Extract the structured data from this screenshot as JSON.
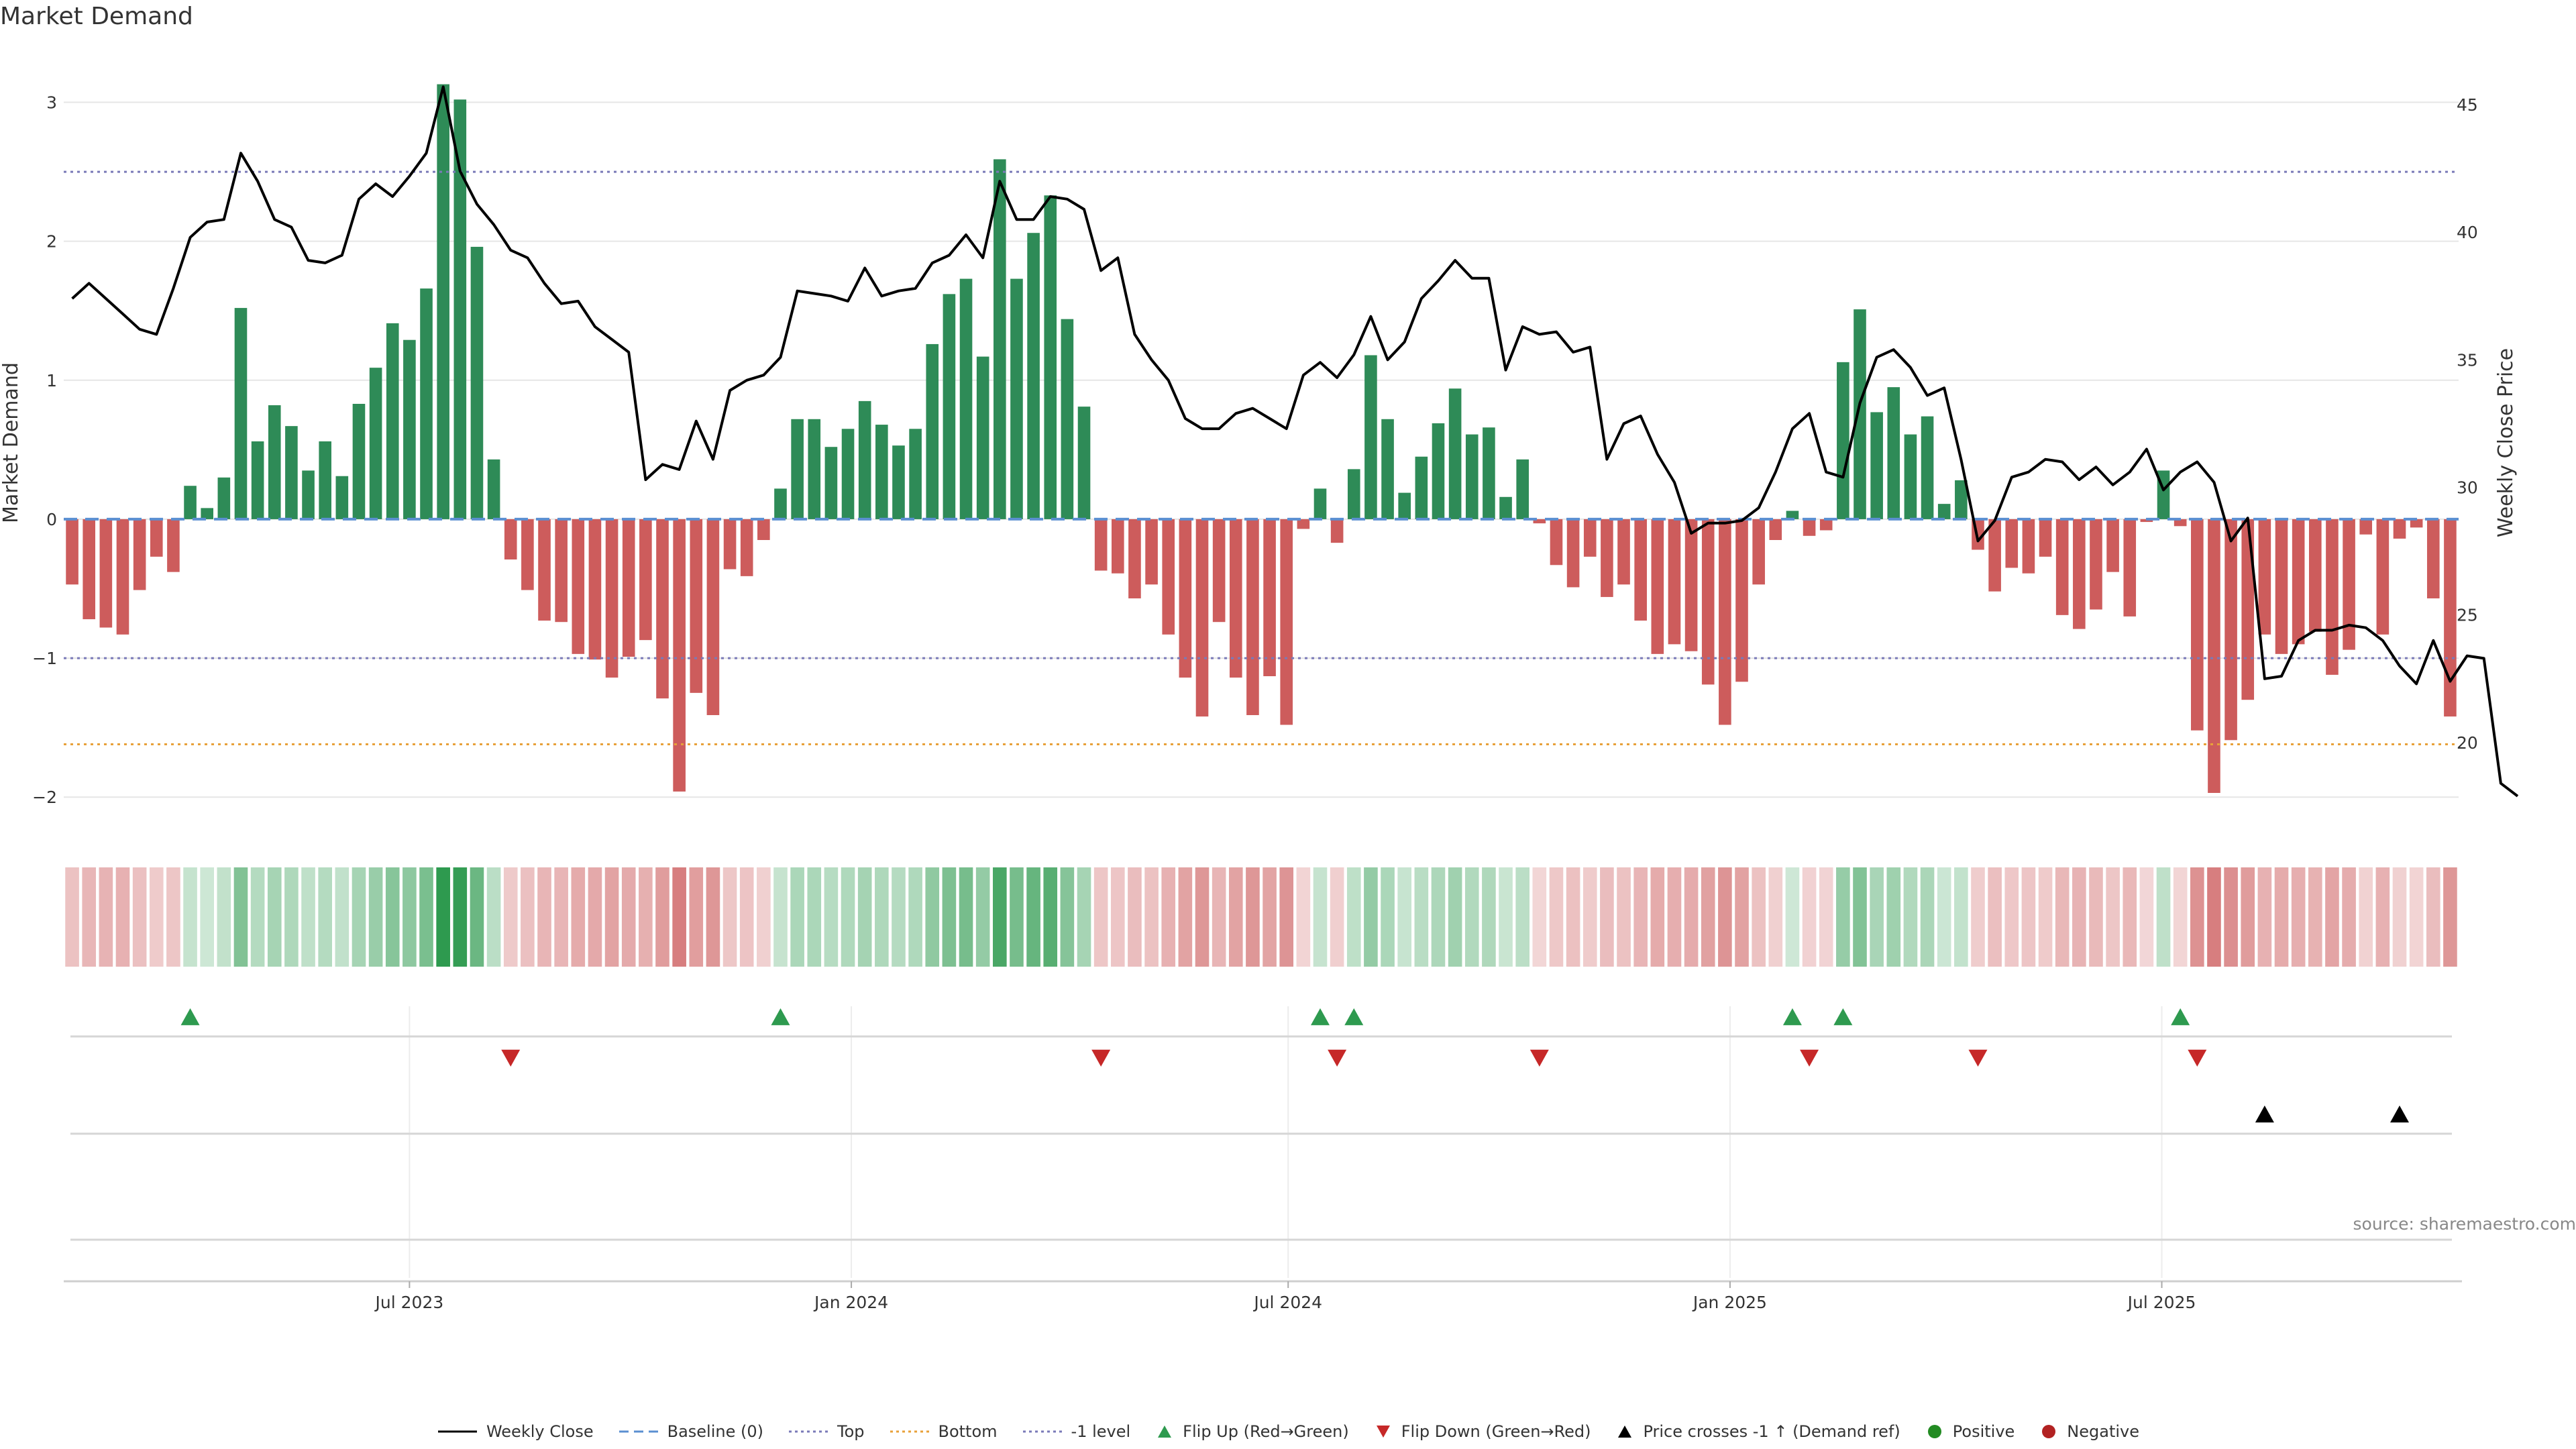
{
  "chart_data": {
    "type": "bar",
    "title": "Market Demand",
    "source": "source: sharemaestro.com",
    "ylabel_left": "Market Demand",
    "ylabel_right": "Weekly Close Price",
    "ylim_left": [
      -2.25,
      3.35
    ],
    "ylim_right": [
      16.5,
      47
    ],
    "yticks_left": [
      {
        "v": 3,
        "l": "3"
      },
      {
        "v": 2,
        "l": "2"
      },
      {
        "v": 1,
        "l": "1"
      },
      {
        "v": 0,
        "l": "0"
      },
      {
        "v": -1,
        "l": "−1"
      },
      {
        "v": -2,
        "l": "−2"
      }
    ],
    "yticks_right": [
      {
        "v": 45,
        "l": "45"
      },
      {
        "v": 40,
        "l": "40"
      },
      {
        "v": 35,
        "l": "35"
      },
      {
        "v": 30,
        "l": "30"
      },
      {
        "v": 25,
        "l": "25"
      },
      {
        "v": 20,
        "l": "20"
      }
    ],
    "x_ticks": [
      {
        "index": 20.5,
        "label": "Jul 2023"
      },
      {
        "index": 46.7,
        "label": "Jan 2024"
      },
      {
        "index": 72.6,
        "label": "Jul 2024"
      },
      {
        "index": 98.8,
        "label": "Jan 2025"
      },
      {
        "index": 124.4,
        "label": "Jul 2025"
      }
    ],
    "reference_lines": [
      {
        "name": "Top",
        "value": 2.5,
        "color": "#7a7ab8"
      },
      {
        "name": "-1 level",
        "value": -1,
        "color": "#7a7ab8"
      },
      {
        "name": "Bottom",
        "value": -1.62,
        "color": "#e8a13a"
      },
      {
        "name": "Baseline (0)",
        "value": 0,
        "color": "#5b8fd1"
      }
    ],
    "demand": [
      -0.47,
      -0.72,
      -0.78,
      -0.83,
      -0.51,
      -0.27,
      -0.38,
      0.24,
      0.08,
      0.3,
      1.52,
      0.56,
      0.82,
      0.67,
      0.35,
      0.56,
      0.31,
      0.83,
      1.09,
      1.41,
      1.29,
      1.66,
      3.13,
      3.02,
      1.96,
      0.43,
      -0.29,
      -0.51,
      -0.73,
      -0.74,
      -0.97,
      -1.01,
      -1.14,
      -0.99,
      -0.87,
      -1.29,
      -1.96,
      -1.25,
      -1.41,
      -0.36,
      -0.41,
      -0.15,
      0.22,
      0.72,
      0.72,
      0.52,
      0.65,
      0.85,
      0.68,
      0.53,
      0.65,
      1.26,
      1.62,
      1.73,
      1.17,
      2.59,
      1.73,
      2.06,
      2.33,
      1.44,
      0.81,
      -0.37,
      -0.39,
      -0.57,
      -0.47,
      -0.83,
      -1.14,
      -1.42,
      -0.74,
      -1.14,
      -1.41,
      -1.13,
      -1.48,
      -0.07,
      0.22,
      -0.17,
      0.36,
      1.18,
      0.72,
      0.19,
      0.45,
      0.69,
      0.94,
      0.61,
      0.66,
      0.16,
      0.43,
      -0.03,
      -0.33,
      -0.49,
      -0.27,
      -0.56,
      -0.47,
      -0.73,
      -0.97,
      -0.9,
      -0.95,
      -1.19,
      -1.48,
      -1.17,
      -0.47,
      -0.15,
      0.06,
      -0.12,
      -0.08,
      1.13,
      1.51,
      0.77,
      0.95,
      0.61,
      0.74,
      0.11,
      0.28,
      -0.22,
      -0.52,
      -0.35,
      -0.39,
      -0.27,
      -0.69,
      -0.79,
      -0.65,
      -0.38,
      -0.7,
      -0.02,
      0.35,
      -0.05,
      -1.52,
      -1.97,
      -1.59,
      -1.3,
      -0.83,
      -0.97,
      -0.9,
      -0.81,
      -1.12,
      -0.94,
      -0.11,
      -0.83,
      -0.14,
      -0.06,
      -0.57,
      -1.42
    ],
    "close": [
      37.4,
      38.0,
      37.4,
      36.8,
      36.2,
      36.0,
      37.8,
      39.8,
      40.4,
      40.5,
      43.1,
      42.0,
      40.5,
      40.2,
      38.9,
      38.8,
      39.1,
      41.3,
      41.9,
      41.4,
      42.2,
      43.1,
      45.7,
      42.4,
      41.1,
      40.3,
      39.3,
      39.0,
      38.0,
      37.2,
      37.3,
      36.3,
      35.8,
      35.3,
      30.3,
      30.9,
      30.7,
      32.6,
      31.1,
      33.8,
      34.2,
      34.4,
      35.1,
      37.7,
      37.6,
      37.5,
      37.3,
      38.6,
      37.5,
      37.7,
      37.8,
      38.8,
      39.1,
      39.9,
      39.0,
      42.0,
      40.5,
      40.5,
      41.4,
      41.3,
      40.9,
      38.5,
      39.0,
      36.0,
      35.0,
      34.2,
      32.7,
      32.3,
      32.3,
      32.9,
      33.1,
      32.7,
      32.3,
      34.4,
      34.9,
      34.3,
      35.2,
      36.7,
      35.0,
      35.7,
      37.4,
      38.1,
      38.9,
      38.2,
      38.2,
      34.6,
      36.3,
      36.0,
      36.1,
      35.3,
      35.5,
      31.1,
      32.5,
      32.8,
      31.3,
      30.2,
      28.2,
      28.6,
      28.6,
      28.7,
      29.2,
      30.6,
      32.3,
      32.9,
      30.6,
      30.4,
      33.3,
      35.1,
      35.4,
      34.7,
      33.6,
      33.9,
      31.1,
      27.9,
      28.7,
      30.4,
      30.6,
      31.1,
      31.0,
      30.3,
      30.8,
      30.1,
      30.6,
      31.5,
      29.9,
      30.6,
      31.0,
      30.2,
      27.9,
      28.8,
      22.5,
      22.6,
      24.0,
      24.4,
      24.4,
      24.6,
      24.5,
      24.0,
      23.0,
      22.3,
      24.0,
      22.4,
      23.4,
      23.3,
      18.4,
      17.9
    ],
    "heat_scale": {
      "neg_color": "#c6494a",
      "pos_color": "#2e9a4f",
      "max_abs": 3.13
    },
    "events": [
      {
        "name": "Flip Up (Red→Green)",
        "symbol": "▲",
        "color": "#2e9a4f",
        "indices": [
          7,
          42,
          74,
          76,
          102,
          105,
          125
        ]
      },
      {
        "name": "Flip Down (Green→Red)",
        "symbol": "▼",
        "color": "#c62828",
        "indices": [
          26,
          61,
          75,
          87,
          103,
          113,
          126
        ]
      },
      {
        "name": "Price crosses -1 ↑ (Demand ref)",
        "symbol": "▲",
        "color": "#000000",
        "indices": [
          130,
          138
        ]
      }
    ],
    "colors": {
      "positive": "#2e8b57",
      "negative": "#cd5c5c",
      "close": "#000000",
      "grid": "#e6e6e6"
    },
    "legend": [
      {
        "label": "Weekly Close",
        "kind": "line",
        "color": "#000000"
      },
      {
        "label": "Baseline (0)",
        "kind": "dash",
        "color": "#5b8fd1"
      },
      {
        "label": "Top",
        "kind": "dot",
        "color": "#7a7ab8"
      },
      {
        "label": "Bottom",
        "kind": "dot",
        "color": "#e8a13a"
      },
      {
        "label": "-1 level",
        "kind": "dot",
        "color": "#7a7ab8"
      },
      {
        "label": "Flip Up (Red→Green)",
        "kind": "tri-up",
        "color": "#2e9a4f"
      },
      {
        "label": "Flip Down (Green→Red)",
        "kind": "tri-down",
        "color": "#c62828"
      },
      {
        "label": "Price crosses -1 ↑ (Demand ref)",
        "kind": "tri-up",
        "color": "#000000"
      },
      {
        "label": "Positive",
        "kind": "dot-circle",
        "color": "#228b22"
      },
      {
        "label": "Negative",
        "kind": "dot-circle",
        "color": "#b22222"
      }
    ]
  }
}
